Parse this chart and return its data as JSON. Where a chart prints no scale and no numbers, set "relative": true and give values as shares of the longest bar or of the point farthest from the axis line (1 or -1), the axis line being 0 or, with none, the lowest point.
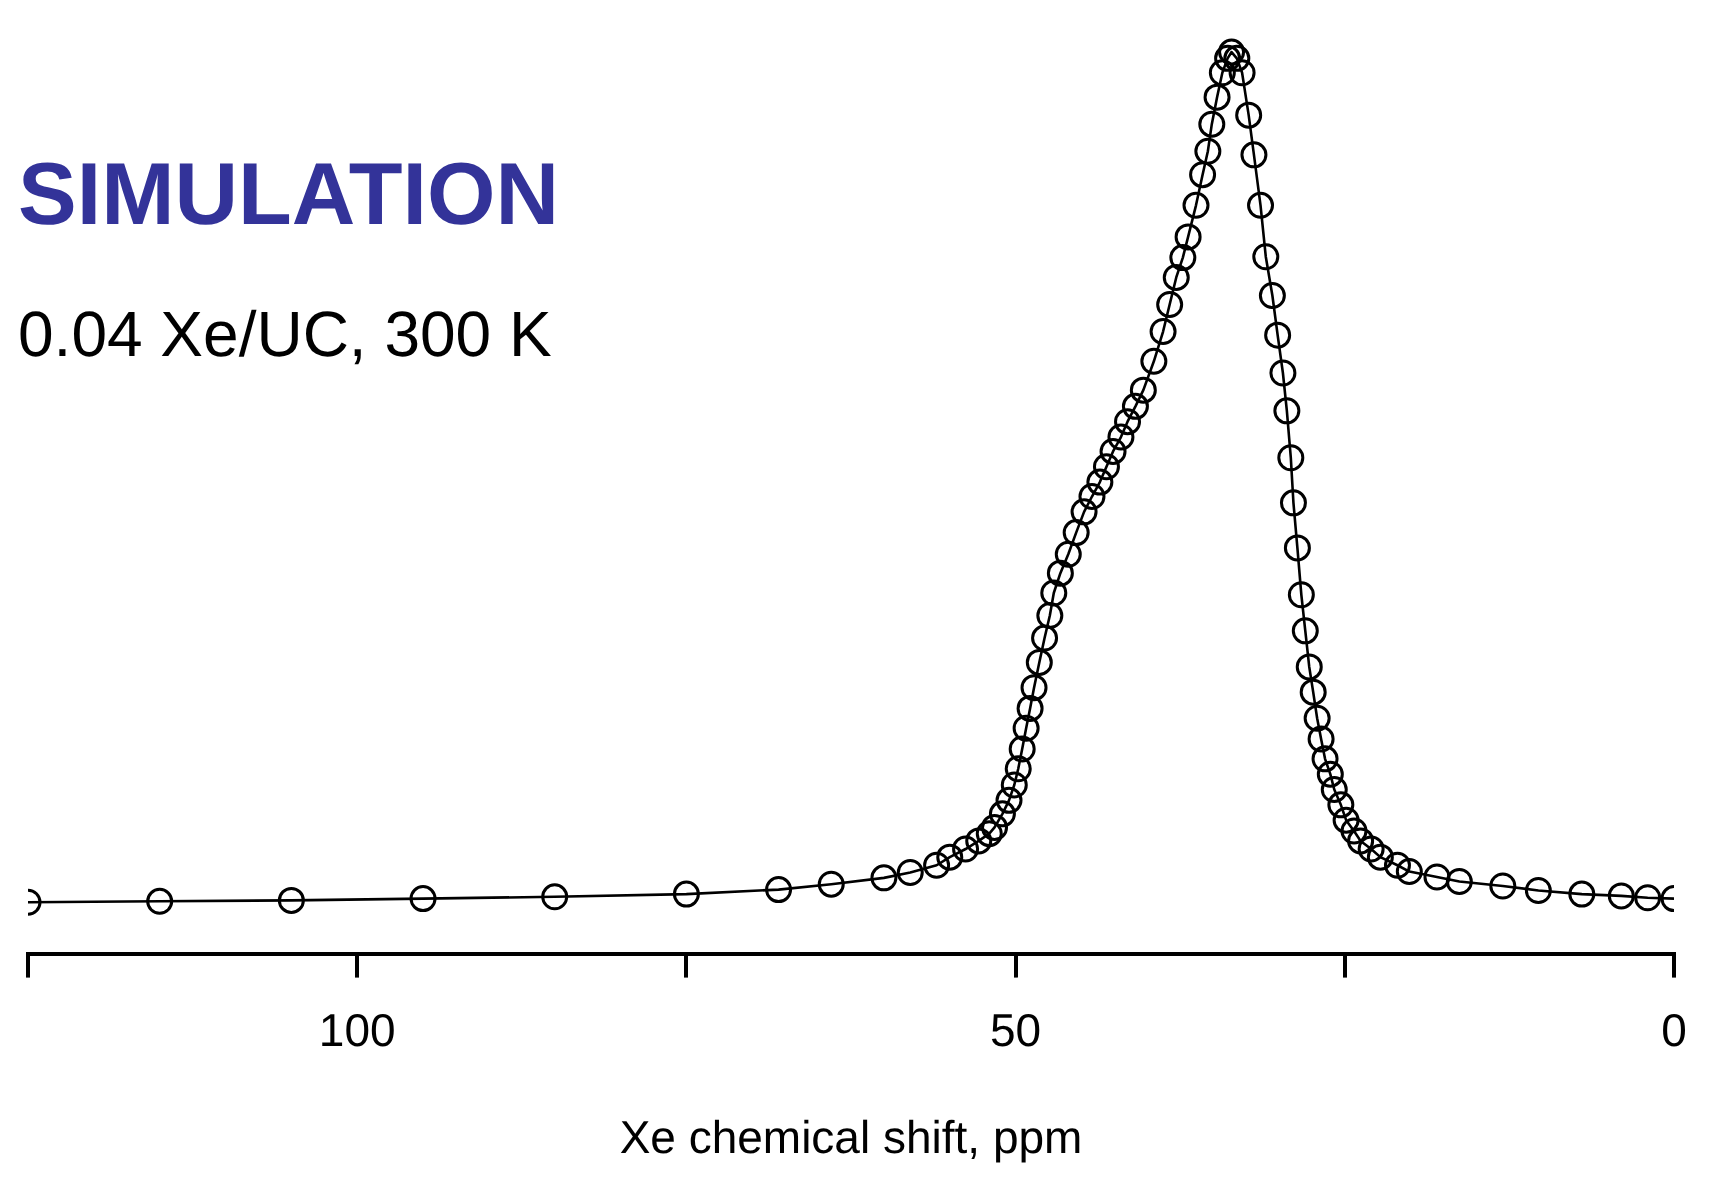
{
  "chart_data": {
    "type": "line",
    "title": "SIMULATION",
    "subtitle": "0.04 Xe/UC, 300 K",
    "xlabel": "Xe chemical shift, ppm",
    "relative": true,
    "marker": "circle",
    "line_style": "solid",
    "grid": false,
    "legend": false,
    "xlim": [
      125,
      0
    ],
    "xticks": [
      {
        "value": 125,
        "label": null
      },
      100,
      {
        "value": 75,
        "label": null
      },
      50,
      {
        "value": 25,
        "label": null
      },
      0
    ],
    "series": [
      {
        "color": "#000000",
        "x": [
          125,
          115,
          105,
          95,
          85,
          75,
          68,
          64,
          60,
          58,
          56,
          55,
          53.8,
          52.8,
          52,
          51.6,
          51,
          50.5,
          50.1,
          49.8,
          49.5,
          49.2,
          48.9,
          48.6,
          48.2,
          47.8,
          47.4,
          47.1,
          46.6,
          46,
          45.4,
          44.8,
          44.2,
          43.6,
          43.1,
          42.6,
          42,
          41.5,
          40.9,
          40.3,
          39.5,
          38.8,
          38.3,
          37.8,
          37.3,
          36.9,
          36.3,
          35.8,
          35.4,
          35.1,
          34.7,
          34.3,
          33.9,
          33.6,
          33.2,
          32.8,
          32.3,
          31.9,
          31.4,
          31,
          30.5,
          30.1,
          29.7,
          29.4,
          29.1,
          28.9,
          28.6,
          28.3,
          28,
          27.7,
          27.4,
          27.1,
          26.8,
          26.5,
          26.1,
          25.8,
          25.3,
          24.9,
          24.3,
          23.8,
          23,
          22.3,
          21,
          20.1,
          18,
          16.3,
          13,
          10.3,
          7,
          4,
          2,
          0
        ],
        "values": [
          0.057,
          0.058,
          0.059,
          0.061,
          0.063,
          0.066,
          0.071,
          0.077,
          0.084,
          0.09,
          0.098,
          0.107,
          0.116,
          0.125,
          0.133,
          0.14,
          0.155,
          0.17,
          0.187,
          0.205,
          0.227,
          0.25,
          0.272,
          0.295,
          0.323,
          0.35,
          0.375,
          0.4,
          0.422,
          0.443,
          0.467,
          0.49,
          0.507,
          0.523,
          0.54,
          0.557,
          0.573,
          0.59,
          0.607,
          0.625,
          0.657,
          0.69,
          0.72,
          0.75,
          0.772,
          0.795,
          0.83,
          0.864,
          0.89,
          0.92,
          0.95,
          0.977,
          0.993,
          1,
          0.993,
          0.977,
          0.93,
          0.886,
          0.83,
          0.773,
          0.73,
          0.686,
          0.644,
          0.602,
          0.55,
          0.5,
          0.45,
          0.398,
          0.358,
          0.318,
          0.29,
          0.261,
          0.238,
          0.216,
          0.199,
          0.182,
          0.165,
          0.148,
          0.136,
          0.125,
          0.116,
          0.107,
          0.098,
          0.091,
          0.085,
          0.08,
          0.075,
          0.07,
          0.066,
          0.064,
          0.062,
          0.061
        ]
      }
    ]
  }
}
